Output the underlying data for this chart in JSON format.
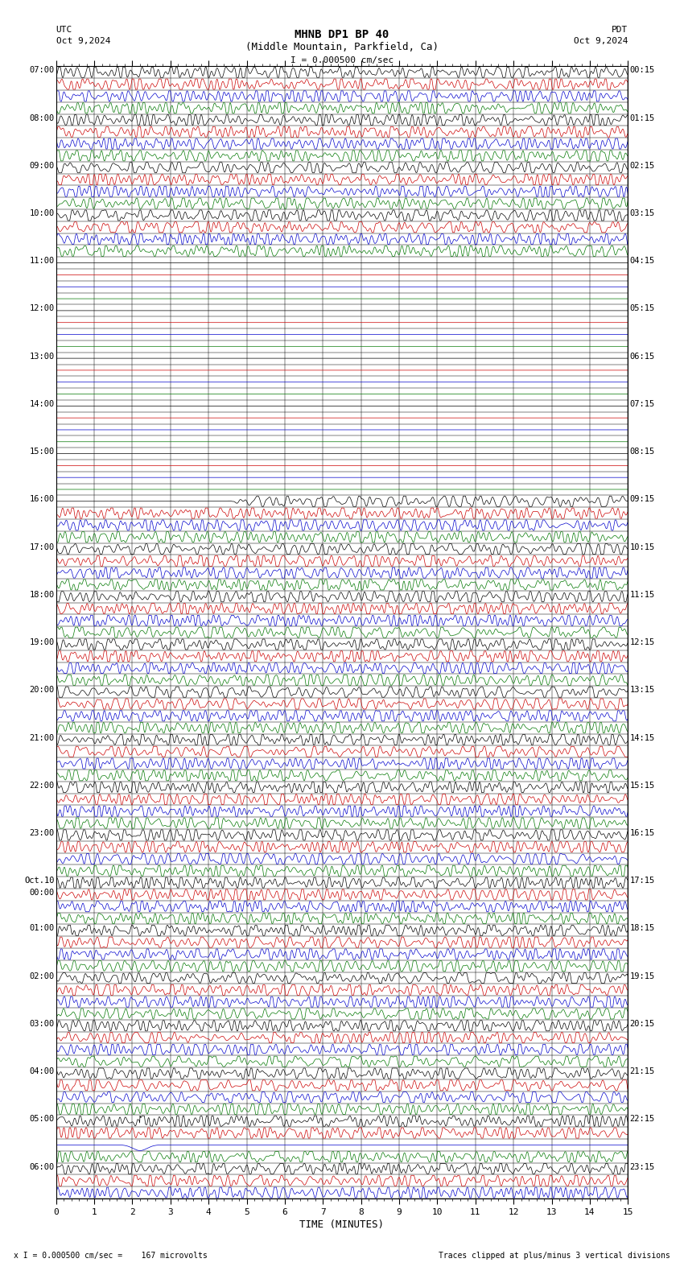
{
  "title_line1": "MHNB DP1 BP 40",
  "title_line2": "(Middle Mountain, Parkfield, Ca)",
  "scale_text": "I = 0.000500 cm/sec",
  "left_header": "UTC",
  "left_date": "Oct 9,2024",
  "right_header": "PDT",
  "right_date": "Oct 9,2024",
  "xlabel": "TIME (MINUTES)",
  "footer_left": "x I = 0.000500 cm/sec =    167 microvolts",
  "footer_right": "Traces clipped at plus/minus 3 vertical divisions",
  "xmin": 0,
  "xmax": 15,
  "colors": [
    "#000000",
    "#cc0000",
    "#0000cc",
    "#007700"
  ],
  "background": "#ffffff",
  "figure_width": 8.5,
  "figure_height": 15.84,
  "dpi": 100,
  "left_times": [
    "07:00",
    "",
    "",
    "",
    "08:00",
    "",
    "",
    "",
    "09:00",
    "",
    "",
    "",
    "10:00",
    "",
    "",
    "",
    "11:00",
    "",
    "",
    "",
    "12:00",
    "",
    "",
    "",
    "13:00",
    "",
    "",
    "",
    "14:00",
    "",
    "",
    "",
    "15:00",
    "",
    "",
    "",
    "16:00",
    "",
    "",
    "",
    "17:00",
    "",
    "",
    "",
    "18:00",
    "",
    "",
    "",
    "19:00",
    "",
    "",
    "",
    "20:00",
    "",
    "",
    "",
    "21:00",
    "",
    "",
    "",
    "22:00",
    "",
    "",
    "",
    "23:00",
    "",
    "",
    "",
    "Oct.10",
    "00:00",
    "",
    "",
    "01:00",
    "",
    "",
    "",
    "02:00",
    "",
    "",
    "",
    "03:00",
    "",
    "",
    "",
    "04:00",
    "",
    "",
    "",
    "05:00",
    "",
    "",
    "",
    "06:00",
    "",
    ""
  ],
  "right_times": [
    "00:15",
    "",
    "",
    "",
    "01:15",
    "",
    "",
    "",
    "02:15",
    "",
    "",
    "",
    "03:15",
    "",
    "",
    "",
    "04:15",
    "",
    "",
    "",
    "05:15",
    "",
    "",
    "",
    "06:15",
    "",
    "",
    "",
    "07:15",
    "",
    "",
    "",
    "08:15",
    "",
    "",
    "",
    "09:15",
    "",
    "",
    "",
    "10:15",
    "",
    "",
    "",
    "11:15",
    "",
    "",
    "",
    "12:15",
    "",
    "",
    "",
    "13:15",
    "",
    "",
    "",
    "14:15",
    "",
    "",
    "",
    "15:15",
    "",
    "",
    "",
    "16:15",
    "",
    "",
    "",
    "17:15",
    "",
    "",
    "",
    "18:15",
    "",
    "",
    "",
    "19:15",
    "",
    "",
    "",
    "20:15",
    "",
    "",
    "",
    "21:15",
    "",
    "",
    "",
    "22:15",
    "",
    "",
    "",
    "23:15",
    "",
    ""
  ]
}
